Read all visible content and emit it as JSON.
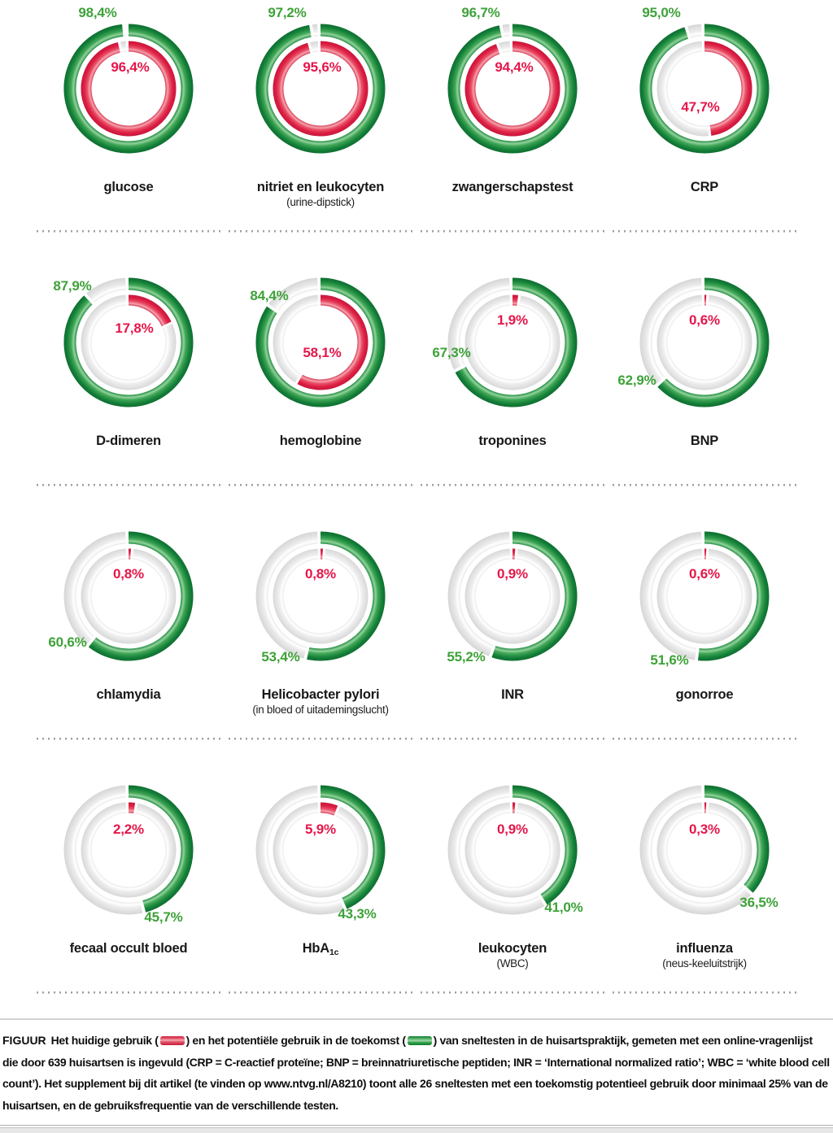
{
  "figure": {
    "caption": {
      "label": "FIGUUR",
      "part1": "Het huidige gebruik (",
      "part2": ") en het potentiële gebruik in de toekomst (",
      "part3": ") van sneltesten in de huisartspraktijk, gemeten met een online-vragenlijst die door 639 huisartsen is ingevuld (CRP = C-reactief proteïne; BNP = breinnatriuretische peptiden; INR = ‘International normalized ratio’; WBC = ‘white blood cell count’). Het supplement bij dit artikel (te vinden op www.ntvg.nl/A8210) toont alle 26 sneltesten met een toekomstig potentieel gebruik door minimaal 25% van de huisartsen, en de gebruiksfrequentie van de verschillende testen.",
      "legend": [
        {
          "name": "huidige gebruik",
          "color": "#dd2145",
          "swatch": "red"
        },
        {
          "name": "potentiële gebruik in de toekomst",
          "color": "#2f9e47",
          "swatch": "green"
        }
      ]
    },
    "colors": {
      "ring_current": "#dd2145",
      "ring_potential": "#2f9e47",
      "ring_remainder": "#e9e9e9",
      "text_green": "#3ea239",
      "text_red": "#e5164a",
      "text_label": "#181818"
    }
  },
  "chart_data": {
    "type": "donut_grid",
    "unit": "%",
    "rings": {
      "outer": "potentieel gebruik in de toekomst (groen)",
      "inner": "huidig gebruik (rood)"
    },
    "start_angle": "12 o'clock, clockwise",
    "charts": [
      {
        "label": "glucose",
        "sublabel": "",
        "potential": 98.4,
        "current": 96.4,
        "potential_display": "98,4%",
        "current_display": "96,4%"
      },
      {
        "label": "nitriet en leukocyten",
        "sublabel": "(urine-dipstick)",
        "potential": 97.2,
        "current": 95.6,
        "potential_display": "97,2%",
        "current_display": "95,6%"
      },
      {
        "label": "zwangerschapstest",
        "sublabel": "",
        "potential": 96.7,
        "current": 94.4,
        "potential_display": "96,7%",
        "current_display": "94,4%"
      },
      {
        "label": "CRP",
        "sublabel": "",
        "potential": 95.0,
        "current": 47.7,
        "potential_display": "95,0%",
        "current_display": "47,7%"
      },
      {
        "label": "D-dimeren",
        "sublabel": "",
        "potential": 87.9,
        "current": 17.8,
        "potential_display": "87,9%",
        "current_display": "17,8%"
      },
      {
        "label": "hemoglobine",
        "sublabel": "",
        "potential": 84.4,
        "current": 58.1,
        "potential_display": "84,4%",
        "current_display": "58,1%"
      },
      {
        "label": "troponines",
        "sublabel": "",
        "potential": 67.3,
        "current": 1.9,
        "potential_display": "67,3%",
        "current_display": "1,9%"
      },
      {
        "label": "BNP",
        "sublabel": "",
        "potential": 62.9,
        "current": 0.6,
        "potential_display": "62,9%",
        "current_display": "0,6%"
      },
      {
        "label": "chlamydia",
        "sublabel": "",
        "potential": 60.6,
        "current": 0.8,
        "potential_display": "60,6%",
        "current_display": "0,8%"
      },
      {
        "label": "Helicobacter pylori",
        "sublabel": "(in bloed of uitademingslucht)",
        "potential": 53.4,
        "current": 0.8,
        "potential_display": "53,4%",
        "current_display": "0,8%"
      },
      {
        "label": "INR",
        "sublabel": "",
        "potential": 55.2,
        "current": 0.9,
        "potential_display": "55,2%",
        "current_display": "0,9%"
      },
      {
        "label": "gonorroe",
        "sublabel": "",
        "potential": 51.6,
        "current": 0.6,
        "potential_display": "51,6%",
        "current_display": "0,6%"
      },
      {
        "label": "fecaal occult bloed",
        "sublabel": "",
        "potential": 45.7,
        "current": 2.2,
        "potential_display": "45,7%",
        "current_display": "2,2%"
      },
      {
        "label": "HbA",
        "label_sub": "1c",
        "sublabel": "",
        "potential": 43.3,
        "current": 5.9,
        "potential_display": "43,3%",
        "current_display": "5,9%"
      },
      {
        "label": "leukocyten",
        "sublabel": "(WBC)",
        "potential": 41.0,
        "current": 0.9,
        "potential_display": "41,0%",
        "current_display": "0,9%"
      },
      {
        "label": "influenza",
        "sublabel": "(neus-keeluitstrijk)",
        "potential": 36.5,
        "current": 0.3,
        "potential_display": "36,5%",
        "current_display": "0,3%"
      }
    ]
  }
}
